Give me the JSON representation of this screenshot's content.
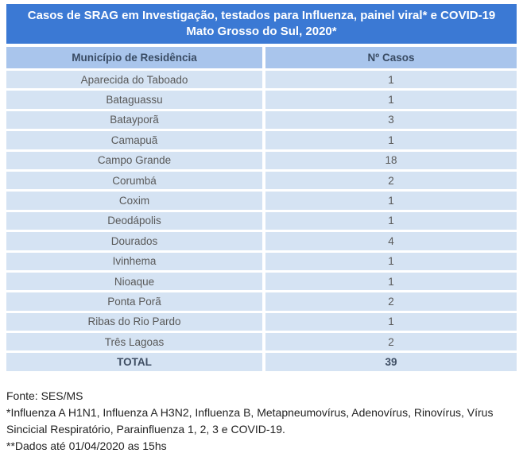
{
  "title": {
    "line1": "Casos de SRAG em Investigação, testados para Influenza, painel viral* e COVID-19",
    "line2": "Mato Grosso do Sul, 2020*"
  },
  "table": {
    "columns": [
      "Município de Residência",
      "Nº Casos"
    ],
    "rows": [
      {
        "municipio": "Aparecida do Taboado",
        "casos": "1"
      },
      {
        "municipio": "Bataguassu",
        "casos": "1"
      },
      {
        "municipio": "Batayporã",
        "casos": "3"
      },
      {
        "municipio": "Camapuã",
        "casos": "1"
      },
      {
        "municipio": "Campo Grande",
        "casos": "18"
      },
      {
        "municipio": "Corumbá",
        "casos": "2"
      },
      {
        "municipio": "Coxim",
        "casos": "1"
      },
      {
        "municipio": "Deodápolis",
        "casos": "1"
      },
      {
        "municipio": "Dourados",
        "casos": "4"
      },
      {
        "municipio": "Ivinhema",
        "casos": "1"
      },
      {
        "municipio": "Nioaque",
        "casos": "1"
      },
      {
        "municipio": "Ponta Porã",
        "casos": "2"
      },
      {
        "municipio": "Ribas do Rio Pardo",
        "casos": "1"
      },
      {
        "municipio": "Três Lagoas",
        "casos": "2"
      }
    ],
    "total": {
      "label": "TOTAL",
      "casos": "39"
    }
  },
  "footer": {
    "fonte": "Fonte: SES/MS",
    "note1": "*Influenza A H1N1, Influenza A H3N2, Influenza B, Metapneumovírus, Adenovírus, Rinovírus, Vírus Sincicial Respiratório, Parainfluenza 1, 2, 3 e COVID-19.",
    "note2": "**Dados até 01/04/2020 as 15hs"
  },
  "colors": {
    "title_bg": "#3B79D4",
    "header_bg": "#A9C5EC",
    "row_bg": "#D5E3F3"
  },
  "chart_data": {
    "type": "table",
    "title": "Casos de SRAG em Investigação, testados para Influenza, painel viral* e COVID-19 — Mato Grosso do Sul, 2020*",
    "categories": [
      "Aparecida do Taboado",
      "Bataguassu",
      "Batayporã",
      "Camapuã",
      "Campo Grande",
      "Corumbá",
      "Coxim",
      "Deodápolis",
      "Dourados",
      "Ivinhema",
      "Nioaque",
      "Ponta Porã",
      "Ribas do Rio Pardo",
      "Três Lagoas"
    ],
    "values": [
      1,
      1,
      3,
      1,
      18,
      2,
      1,
      1,
      4,
      1,
      1,
      2,
      1,
      2
    ],
    "total": 39
  }
}
